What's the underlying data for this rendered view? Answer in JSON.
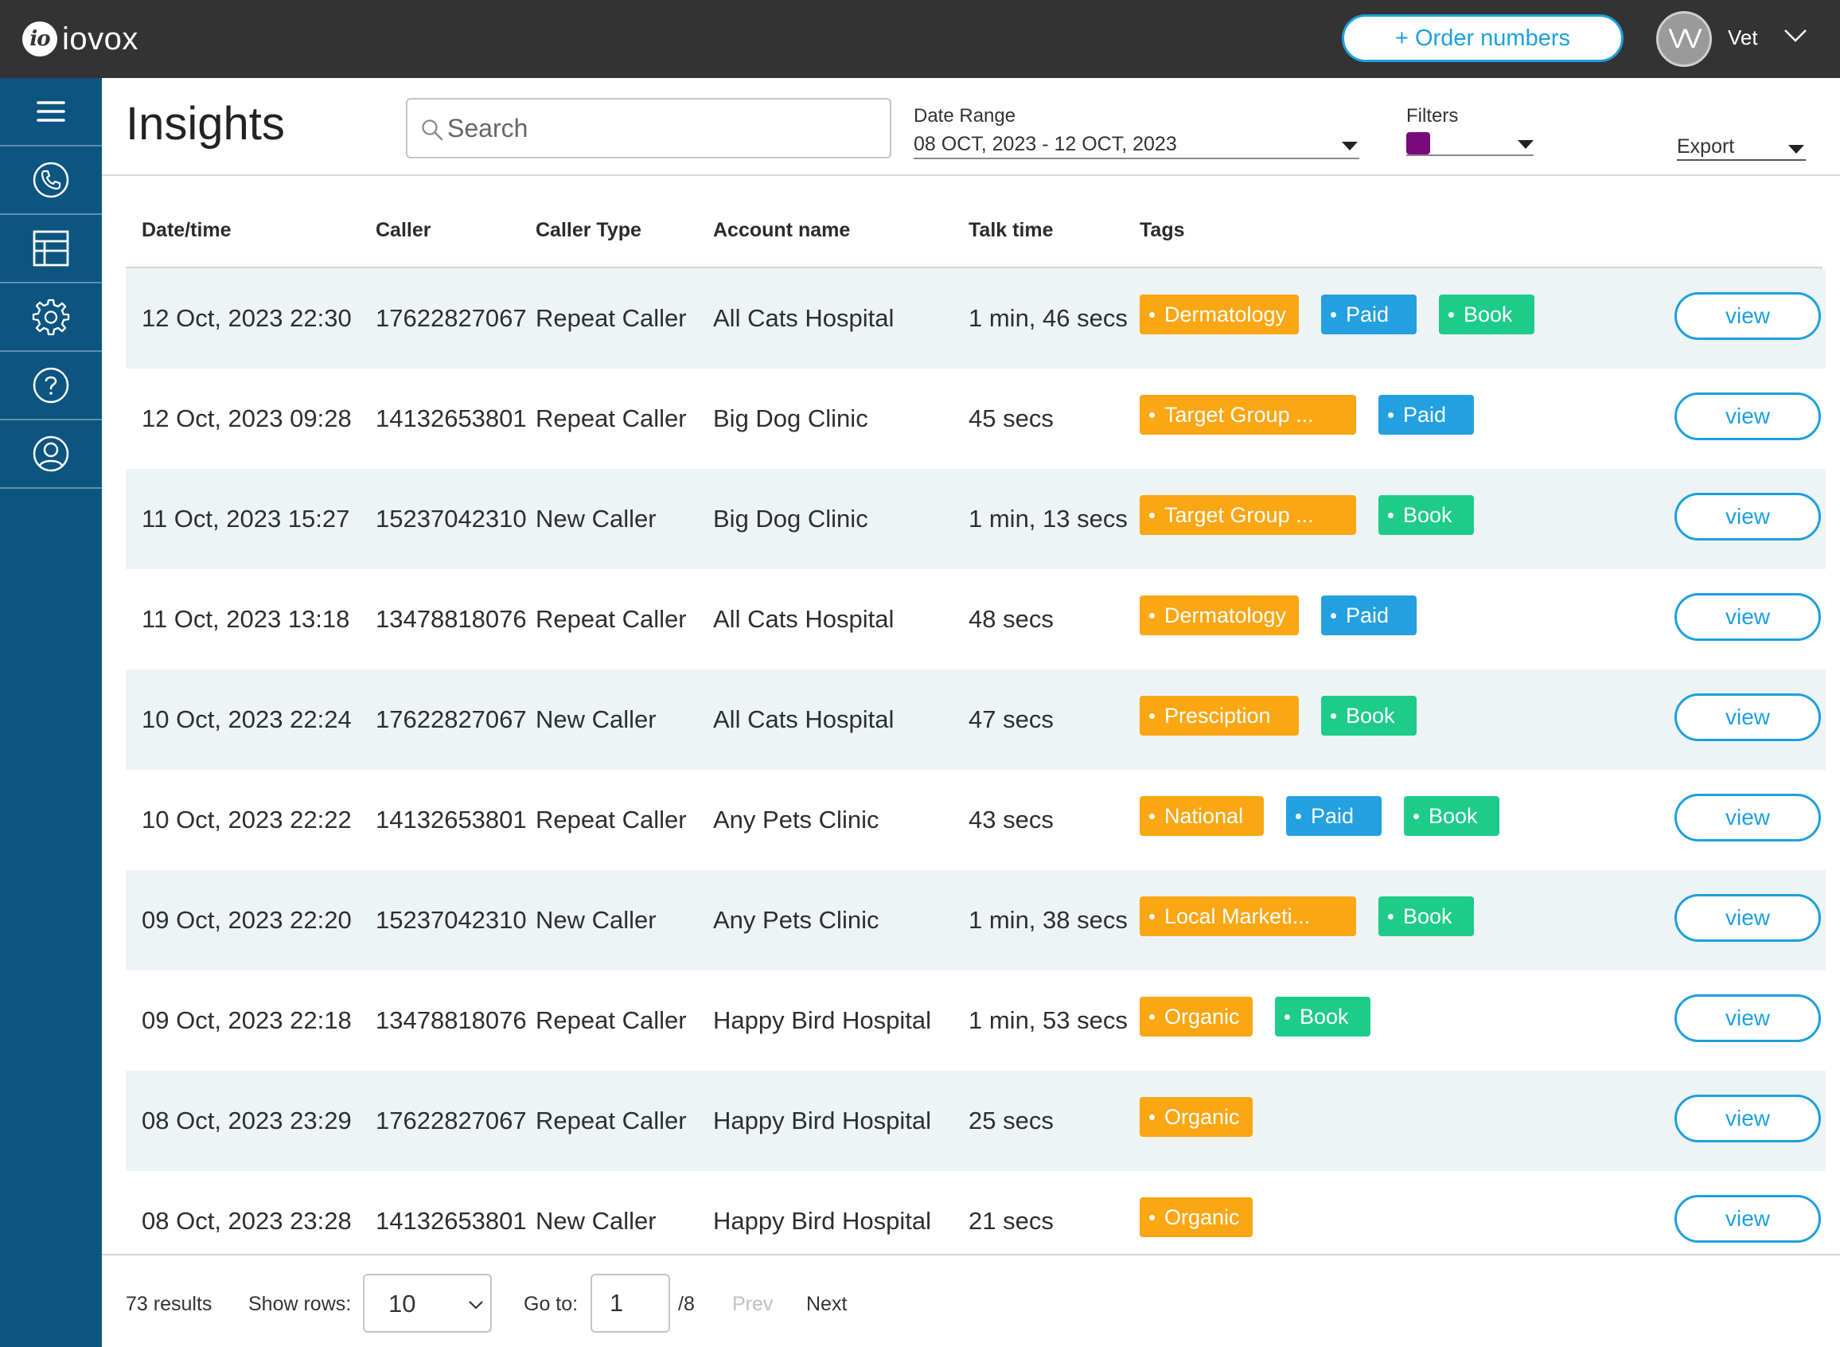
{
  "app": {
    "logo_mark": "io",
    "logo_text": "iovox",
    "order_button": "+ Order numbers",
    "user_initials": "VV",
    "user_name": "Vet"
  },
  "sidebar": {
    "items": [
      {
        "icon": "menu-icon"
      },
      {
        "icon": "phone-icon"
      },
      {
        "icon": "table-icon"
      },
      {
        "icon": "gear-icon"
      },
      {
        "icon": "help-icon"
      },
      {
        "icon": "user-icon"
      }
    ]
  },
  "header": {
    "title": "Insights",
    "search_placeholder": "Search",
    "date_range_label": "Date Range",
    "date_range_value": "08 OCT, 2023 - 12 OCT, 2023",
    "filters_label": "Filters",
    "filters_swatch_color": "#7a0a7a",
    "export_label": "Export"
  },
  "table": {
    "columns": [
      "Date/time",
      "Caller",
      "Caller Type",
      "Account name",
      "Talk time",
      "Tags"
    ],
    "view_label": "view",
    "tag_colors": {
      "orange": "#fba613",
      "blue": "#23a0e0",
      "green": "#1dcc8a"
    },
    "rows": [
      {
        "datetime": "12 Oct, 2023 22:30",
        "caller": "17622827067",
        "caller_type": "Repeat Caller",
        "account": "All Cats Hospital",
        "talk_time": "1 min, 46 secs",
        "tags": [
          {
            "label": "Dermatology",
            "color": "orange"
          },
          {
            "label": "Paid",
            "color": "blue"
          },
          {
            "label": "Book",
            "color": "green"
          }
        ]
      },
      {
        "datetime": "12 Oct, 2023 09:28",
        "caller": "14132653801",
        "caller_type": "Repeat Caller",
        "account": "Big Dog Clinic",
        "talk_time": "45 secs",
        "tags": [
          {
            "label": "Target Group ...",
            "color": "orange"
          },
          {
            "label": "Paid",
            "color": "blue"
          }
        ]
      },
      {
        "datetime": "11 Oct, 2023 15:27",
        "caller": "15237042310",
        "caller_type": "New Caller",
        "account": "Big Dog Clinic",
        "talk_time": "1 min, 13 secs",
        "tags": [
          {
            "label": "Target Group ...",
            "color": "orange"
          },
          {
            "label": "Book",
            "color": "green"
          }
        ]
      },
      {
        "datetime": "11 Oct, 2023 13:18",
        "caller": "13478818076",
        "caller_type": "Repeat Caller",
        "account": "All Cats Hospital",
        "talk_time": "48 secs",
        "tags": [
          {
            "label": "Dermatology",
            "color": "orange"
          },
          {
            "label": "Paid",
            "color": "blue"
          }
        ]
      },
      {
        "datetime": "10 Oct, 2023 22:24",
        "caller": "17622827067",
        "caller_type": "New Caller",
        "account": "All Cats Hospital",
        "talk_time": "47 secs",
        "tags": [
          {
            "label": "Presciption",
            "color": "orange"
          },
          {
            "label": "Book",
            "color": "green"
          }
        ]
      },
      {
        "datetime": "10 Oct, 2023 22:22",
        "caller": "14132653801",
        "caller_type": "Repeat Caller",
        "account": "Any Pets Clinic",
        "talk_time": "43 secs",
        "tags": [
          {
            "label": "National",
            "color": "orange"
          },
          {
            "label": "Paid",
            "color": "blue"
          },
          {
            "label": "Book",
            "color": "green"
          }
        ]
      },
      {
        "datetime": "09 Oct, 2023 22:20",
        "caller": "15237042310",
        "caller_type": "New Caller",
        "account": "Any Pets Clinic",
        "talk_time": "1 min, 38 secs",
        "tags": [
          {
            "label": "Local Marketi...",
            "color": "orange"
          },
          {
            "label": "Book",
            "color": "green"
          }
        ]
      },
      {
        "datetime": "09 Oct, 2023 22:18",
        "caller": "13478818076",
        "caller_type": "Repeat Caller",
        "account": "Happy Bird Hospital",
        "talk_time": "1 min, 53 secs",
        "tags": [
          {
            "label": "Organic",
            "color": "orange"
          },
          {
            "label": "Book",
            "color": "green"
          }
        ]
      },
      {
        "datetime": "08 Oct, 2023 23:29",
        "caller": "17622827067",
        "caller_type": "Repeat Caller",
        "account": "Happy Bird Hospital",
        "talk_time": "25 secs",
        "tags": [
          {
            "label": "Organic",
            "color": "orange"
          }
        ]
      },
      {
        "datetime": "08 Oct, 2023 23:28",
        "caller": "14132653801",
        "caller_type": "New Caller",
        "account": "Happy Bird Hospital",
        "talk_time": "21 secs",
        "tags": [
          {
            "label": "Organic",
            "color": "orange"
          }
        ]
      }
    ]
  },
  "footer": {
    "results": "73 results",
    "show_rows_label": "Show rows:",
    "rows_value": "10",
    "goto_label": "Go to:",
    "goto_value": "1",
    "total_pages": "/8",
    "prev_label": "Prev",
    "next_label": "Next"
  }
}
